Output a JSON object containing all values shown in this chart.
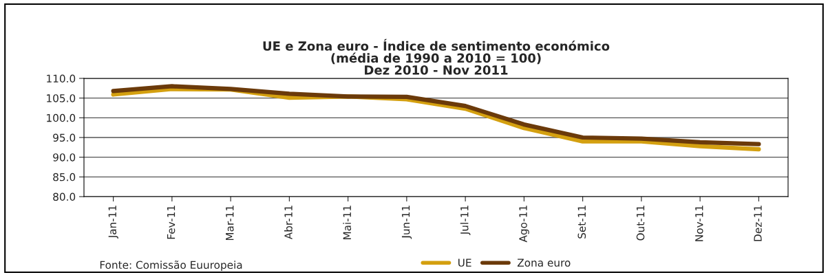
{
  "chart_data": {
    "type": "line",
    "title": "UE e Zona euro - Índice de sentimento económico\n(média de 1990 a 2010 = 100)\nDez 2010 - Nov 2011",
    "categories": [
      "Jan-11",
      "Fev-11",
      "Mar-11",
      "Abr-11",
      "Mai-11",
      "Jun-11",
      "Jul-11",
      "Ago-11",
      "Set-11",
      "Out-11",
      "Nov-11",
      "Dez-11"
    ],
    "series": [
      {
        "name": "UE",
        "color": "#d4a010",
        "values": [
          105.9,
          107.3,
          107.2,
          105.1,
          105.4,
          104.7,
          102.3,
          97.4,
          94.0,
          94.0,
          92.8,
          92.0
        ]
      },
      {
        "name": "Zona euro",
        "color": "#6b3a0a",
        "values": [
          106.8,
          108.0,
          107.3,
          106.1,
          105.4,
          105.3,
          103.0,
          98.3,
          95.0,
          94.7,
          93.8,
          93.3
        ]
      }
    ],
    "ylim": [
      80,
      110
    ],
    "yticks": [
      {
        "value": 80,
        "label": "80.0"
      },
      {
        "value": 85,
        "label": "85.0"
      },
      {
        "value": 90,
        "label": "90.0"
      },
      {
        "value": 95,
        "label": "95.0"
      },
      {
        "value": 100,
        "label": "100.0"
      },
      {
        "value": 105,
        "label": "105.0"
      },
      {
        "value": 110,
        "label": "110.0"
      }
    ],
    "grid": "y",
    "legend": "bottom",
    "marker": "none",
    "line_style": "solid",
    "annotations": [
      "Fonte: Comissão Euuropeia"
    ]
  }
}
